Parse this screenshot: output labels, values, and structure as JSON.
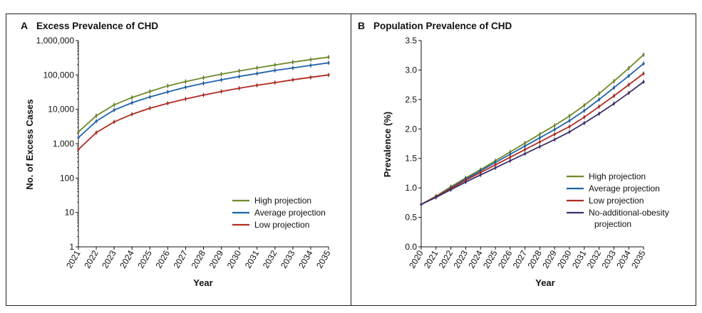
{
  "chart_data": [
    {
      "type": "line",
      "panel": "A",
      "title": "Excess Prevalence of CHD",
      "xlabel": "Year",
      "ylabel": "No. of Excess Cases",
      "yscale": "log",
      "ylim": [
        1,
        1000000
      ],
      "yticks": [
        1,
        10,
        100,
        1000,
        10000,
        100000,
        1000000
      ],
      "ytick_labels": [
        "1",
        "10",
        "100",
        "1,000",
        "10,000",
        "100,000",
        "1,000,000"
      ],
      "x": [
        2021,
        2022,
        2023,
        2024,
        2025,
        2026,
        2027,
        2028,
        2029,
        2030,
        2031,
        2032,
        2033,
        2034,
        2035
      ],
      "xtick_labels": [
        "2021",
        "2022",
        "2023",
        "2024",
        "2025",
        "2026",
        "2027",
        "2028",
        "2029",
        "2030",
        "2031",
        "2032",
        "2033",
        "2034",
        "2035"
      ],
      "legend_position": "bottom-right",
      "series": [
        {
          "name": "High projection",
          "color": "#6e8a2a",
          "values": [
            2200,
            6500,
            13500,
            22000,
            33000,
            48000,
            64000,
            83000,
            105000,
            130000,
            160000,
            195000,
            235000,
            280000,
            330000
          ]
        },
        {
          "name": "Average projection",
          "color": "#1f63a8",
          "values": [
            1500,
            4500,
            9500,
            15500,
            23000,
            32000,
            44000,
            57000,
            72000,
            90000,
            110000,
            135000,
            160000,
            190000,
            225000
          ]
        },
        {
          "name": "Low projection",
          "color": "#b22b21",
          "values": [
            680,
            2100,
            4300,
            7200,
            10800,
            15000,
            20000,
            26000,
            33000,
            41000,
            50000,
            60000,
            72000,
            85000,
            100000
          ]
        }
      ]
    },
    {
      "type": "line",
      "panel": "B",
      "title": "Population Prevalence of  CHD",
      "xlabel": "Year",
      "ylabel": "Prevalence (%)",
      "ylim": [
        0,
        3.5
      ],
      "yticks": [
        0,
        0.5,
        1.0,
        1.5,
        2.0,
        2.5,
        3.0,
        3.5
      ],
      "ytick_labels": [
        "0.0",
        "0.5",
        "1.0",
        "1.5",
        "2.0",
        "2.5",
        "3.0",
        "3.5"
      ],
      "x": [
        2020,
        2021,
        2022,
        2023,
        2024,
        2025,
        2026,
        2027,
        2028,
        2029,
        2030,
        2031,
        2032,
        2033,
        2034,
        2035
      ],
      "xtick_labels": [
        "2020",
        "2021",
        "2022",
        "2023",
        "2024",
        "2025",
        "2026",
        "2027",
        "2028",
        "2029",
        "2030",
        "2031",
        "2032",
        "2033",
        "2034",
        "2035"
      ],
      "legend_position": "bottom-right",
      "series": [
        {
          "name": "High projection",
          "color": "#6e8a2a",
          "values": [
            0.72,
            0.86,
            1.02,
            1.17,
            1.31,
            1.46,
            1.61,
            1.76,
            1.91,
            2.06,
            2.22,
            2.4,
            2.6,
            2.81,
            3.03,
            3.26
          ]
        },
        {
          "name": "Average projection",
          "color": "#1f63a8",
          "values": [
            0.72,
            0.85,
            1.0,
            1.15,
            1.29,
            1.43,
            1.57,
            1.71,
            1.85,
            1.99,
            2.14,
            2.31,
            2.5,
            2.7,
            2.9,
            3.11
          ]
        },
        {
          "name": "Low projection",
          "color": "#b22b21",
          "values": [
            0.72,
            0.85,
            0.99,
            1.13,
            1.26,
            1.39,
            1.52,
            1.65,
            1.78,
            1.91,
            2.04,
            2.2,
            2.38,
            2.56,
            2.75,
            2.94
          ]
        },
        {
          "name": "No-additional-obesity projection",
          "name_lines": [
            "No-additional-obesity",
            "projection"
          ],
          "color": "#3d2e6e",
          "values": [
            0.72,
            0.84,
            0.97,
            1.1,
            1.22,
            1.34,
            1.46,
            1.58,
            1.7,
            1.82,
            1.95,
            2.1,
            2.26,
            2.43,
            2.61,
            2.8
          ]
        }
      ]
    }
  ]
}
